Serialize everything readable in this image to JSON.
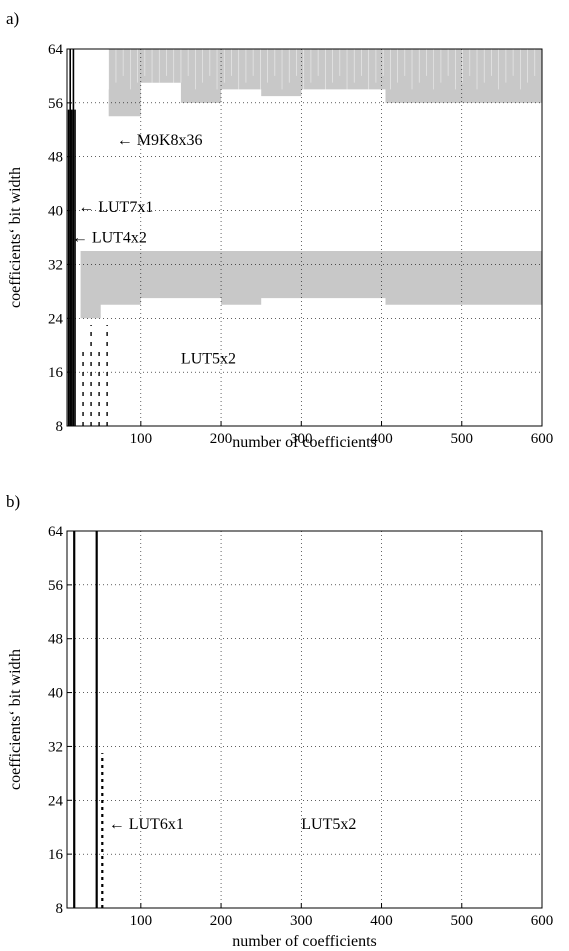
{
  "chart_data": [
    {
      "panel_label": "a)",
      "type": "heatmap",
      "xlabel": "number of coefficients",
      "ylabel": "coefficients‘ bit width",
      "xlim": [
        8,
        600
      ],
      "ylim": [
        8,
        64
      ],
      "x_ticks": [
        "100",
        "200",
        "300",
        "400",
        "500",
        "600"
      ],
      "y_ticks": [
        "8",
        "16",
        "24",
        "32",
        "40",
        "48",
        "56",
        "64"
      ],
      "grid": true,
      "region_color": "#c8c8c8",
      "regions": [
        {
          "name": "upper-gray-band",
          "x": [
            60,
            100,
            150,
            200,
            250,
            300,
            350,
            400,
            405,
            450,
            500,
            550,
            600
          ],
          "y_low": [
            54,
            59,
            56,
            58,
            57,
            58,
            58,
            58,
            56,
            56,
            56,
            56,
            56
          ],
          "y_high": [
            64,
            64,
            64,
            64,
            64,
            64,
            64,
            64,
            64,
            64,
            64,
            64,
            64
          ]
        },
        {
          "name": "lower-gray-band",
          "x": [
            25,
            50,
            100,
            150,
            200,
            250,
            300,
            350,
            400,
            405,
            450,
            500,
            550,
            600
          ],
          "y_low": [
            24,
            26,
            27,
            27,
            26,
            27,
            27,
            27,
            27,
            26,
            26,
            26,
            26,
            26
          ],
          "y_high": [
            34,
            34,
            34,
            34,
            34,
            34,
            34,
            34,
            34,
            34,
            34,
            34,
            34,
            34
          ]
        }
      ],
      "annotations": [
        {
          "text": "← M9K8x36",
          "x": 70,
          "y": 50.5
        },
        {
          "text": "← LUT7x1",
          "x": 22,
          "y": 40.5
        },
        {
          "text": "← LUT4x2",
          "x": 14,
          "y": 36
        },
        {
          "text": "LUT5x2",
          "x": 150,
          "y": 18
        }
      ]
    },
    {
      "panel_label": "b)",
      "type": "heatmap",
      "xlabel": "number of coefficients",
      "ylabel": "coefficients‘ bit width",
      "xlim": [
        8,
        600
      ],
      "ylim": [
        8,
        64
      ],
      "x_ticks": [
        "100",
        "200",
        "300",
        "400",
        "500",
        "600"
      ],
      "y_ticks": [
        "8",
        "16",
        "24",
        "32",
        "40",
        "48",
        "56",
        "64"
      ],
      "grid": true,
      "boundaries": [
        {
          "name": "vertical-line-1",
          "x": 17,
          "y_range": [
            8,
            64
          ]
        },
        {
          "name": "vertical-line-2",
          "x": 45,
          "y_range": [
            8,
            64
          ]
        },
        {
          "name": "dashed-line-3",
          "x": 52,
          "y_range": [
            8,
            31
          ]
        }
      ],
      "annotations": [
        {
          "text": "← LUT6x1",
          "x": 60,
          "y": 20.5
        },
        {
          "text": "LUT5x2",
          "x": 300,
          "y": 20.5
        }
      ]
    }
  ]
}
